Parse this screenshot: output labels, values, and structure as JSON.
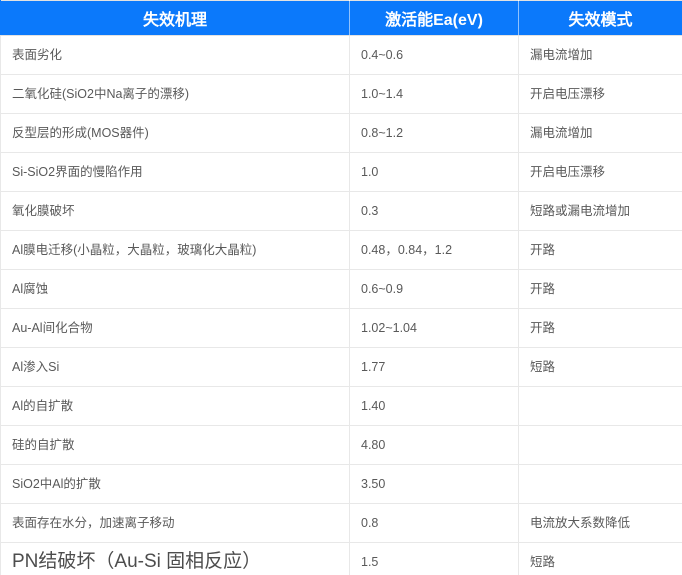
{
  "table": {
    "title": "failure-mechanism-table",
    "columns": [
      {
        "label": "失效机理"
      },
      {
        "label": "激活能Ea(eV)"
      },
      {
        "label": "失效模式"
      }
    ],
    "rows": [
      {
        "mechanism": "表面劣化",
        "activation_energy": "0.4~0.6",
        "failure_mode": "漏电流增加"
      },
      {
        "mechanism": "二氧化硅(SiO2中Na离子的漂移)",
        "activation_energy": "1.0~1.4",
        "failure_mode": "开启电压漂移"
      },
      {
        "mechanism": "反型层的形成(MOS器件)",
        "activation_energy": "0.8~1.2",
        "failure_mode": "漏电流增加"
      },
      {
        "mechanism": "Si-SiO2界面的慢陷作用",
        "activation_energy": "1.0",
        "failure_mode": "开启电压漂移"
      },
      {
        "mechanism": "氧化膜破坏",
        "activation_energy": "0.3",
        "failure_mode": "短路或漏电流增加"
      },
      {
        "mechanism": "Al膜电迁移(小晶粒，大晶粒，玻璃化大晶粒)",
        "activation_energy": "0.48，0.84，1.2",
        "failure_mode": "开路"
      },
      {
        "mechanism": "Al腐蚀",
        "activation_energy": "0.6~0.9",
        "failure_mode": "开路"
      },
      {
        "mechanism": "Au-Al间化合物",
        "activation_energy": "1.02~1.04",
        "failure_mode": "开路"
      },
      {
        "mechanism": "Al渗入Si",
        "activation_energy": "1.77",
        "failure_mode": "短路"
      },
      {
        "mechanism": "Al的自扩散",
        "activation_energy": "1.40",
        "failure_mode": ""
      },
      {
        "mechanism": "硅的自扩散",
        "activation_energy": "4.80",
        "failure_mode": ""
      },
      {
        "mechanism": "SiO2中Al的扩散",
        "activation_energy": "3.50",
        "failure_mode": ""
      },
      {
        "mechanism": "表面存在水分，加速离子移动",
        "activation_energy": "0.8",
        "failure_mode": "电流放大系数降低"
      },
      {
        "mechanism": "PN结破坏（Au-Si 固相反应）",
        "activation_energy": "1.5",
        "failure_mode": "短路"
      }
    ],
    "colors": {
      "header_bg": "#0b79fb",
      "header_text": "#ffffff",
      "body_text": "#595959",
      "border": "#e8e8e8"
    }
  }
}
